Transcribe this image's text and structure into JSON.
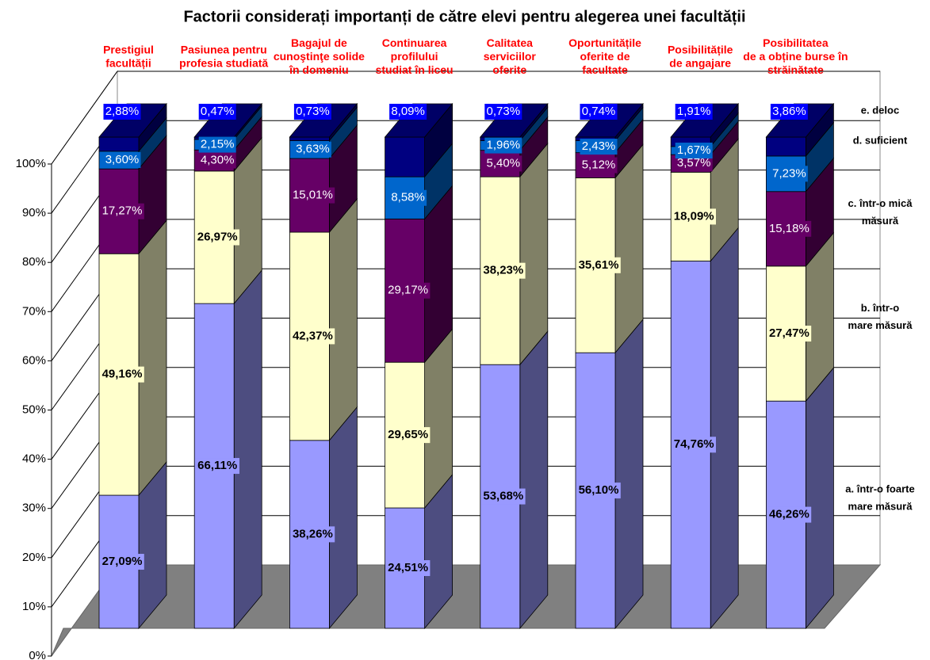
{
  "chart_data": {
    "type": "bar3d_stacked",
    "title": "Factorii considerați importanți de către elevi pentru alegerea unei facultății",
    "categories": [
      "Prestigiul\nfacultății",
      "Pasiunea pentru\nprofesia studiată",
      "Bagajul de\ncunoştinţe solide\nîn domeniu",
      "Continuarea\nprofilului\nstudiat în liceu",
      "Calitatea\nserviciilor\noferite",
      "Oportunitățile\noferite de\nfacultate",
      "Posibilitățile\nde angajare",
      "Posibilitatea\nde a obține burse în\nstrăinătate"
    ],
    "series": [
      {
        "name": "a. într-o foarte\nmare măsură",
        "color": "#9999ff",
        "values": [
          27.09,
          66.11,
          38.26,
          24.51,
          53.68,
          56.1,
          74.76,
          46.26
        ],
        "value_labels": [
          "27,09%",
          "66,11%",
          "38,26%",
          "24,51%",
          "53,68%",
          "56,10%",
          "74,76%",
          "46,26%"
        ]
      },
      {
        "name": "b. într-o\nmare măsură",
        "color": "#ffffcc",
        "values": [
          49.16,
          26.97,
          42.37,
          29.65,
          38.23,
          35.61,
          18.09,
          27.47
        ],
        "value_labels": [
          "49,16%",
          "26,97%",
          "42,37%",
          "29,65%",
          "38,23%",
          "35,61%",
          "18,09%",
          "27,47%"
        ]
      },
      {
        "name": "c. într-o mică\nmăsură",
        "color": "#660066",
        "values": [
          17.27,
          4.3,
          15.01,
          29.17,
          5.4,
          5.12,
          3.57,
          15.18
        ],
        "value_labels": [
          "17,27%",
          "4,30%",
          "15,01%",
          "29,17%",
          "5,40%",
          "5,12%",
          "3,57%",
          "15,18%"
        ]
      },
      {
        "name": "d. suficient",
        "color": "#0066cc",
        "values": [
          3.6,
          2.15,
          3.63,
          8.58,
          1.96,
          2.43,
          1.67,
          7.23
        ],
        "value_labels": [
          "3,60%",
          "2,15%",
          "3,63%",
          "8,58%",
          "1,96%",
          "2,43%",
          "1,67%",
          "7,23%"
        ]
      },
      {
        "name": "e. deloc",
        "color": "#000080",
        "values": [
          2.88,
          0.47,
          0.73,
          8.09,
          0.73,
          0.74,
          1.91,
          3.86
        ],
        "value_labels": [
          "2,88%",
          "0,47%",
          "0,73%",
          "8,09%",
          "0,73%",
          "0,74%",
          "1,91%",
          "3,86%"
        ]
      }
    ],
    "ylim": [
      0,
      100
    ],
    "yticks": [
      {
        "value": 0,
        "label": "0%"
      },
      {
        "value": 10,
        "label": "10%"
      },
      {
        "value": 20,
        "label": "20%"
      },
      {
        "value": 30,
        "label": "30%"
      },
      {
        "value": 40,
        "label": "40%"
      },
      {
        "value": 50,
        "label": "50%"
      },
      {
        "value": 60,
        "label": "60%"
      },
      {
        "value": 70,
        "label": "70%"
      },
      {
        "value": 80,
        "label": "80%"
      },
      {
        "value": 90,
        "label": "90%"
      },
      {
        "value": 100,
        "label": "100%"
      }
    ],
    "grid": true
  }
}
